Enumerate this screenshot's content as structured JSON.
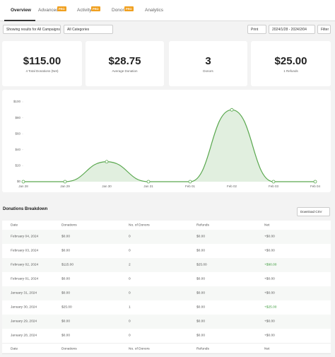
{
  "tabs": [
    {
      "label": "Overview"
    },
    {
      "label": "Advanced",
      "badge": "PRO"
    },
    {
      "label": "Activity",
      "badge": "PRO"
    },
    {
      "label": "Donors",
      "badge": "PRO"
    },
    {
      "label": "Analytics"
    }
  ],
  "filters": {
    "campaign": "Showing results for All Campaigns",
    "category": "All Categories",
    "print": "Print",
    "date_range": "2024/1/28 - 2024/2/04",
    "filter": "Filter"
  },
  "stats": [
    {
      "value": "$115.00",
      "label": "4 Total Donations (Net)"
    },
    {
      "value": "$28.75",
      "label": "Average Donation"
    },
    {
      "value": "3",
      "label": "Donors"
    },
    {
      "value": "$25.00",
      "label": "1 Refunds"
    }
  ],
  "chart_data": {
    "type": "area",
    "categories": [
      "Jan 28",
      "Jan 29",
      "Jan 30",
      "Jan 31",
      "Feb 01",
      "Feb 02",
      "Feb 03",
      "Feb 04"
    ],
    "values": [
      0,
      0,
      25,
      0,
      0,
      90,
      0,
      0
    ],
    "color": "#5aa84f",
    "ylim": [
      0,
      100
    ],
    "yticks": [
      {
        "value": 0,
        "label": "$0"
      },
      {
        "value": 20,
        "label": "$20"
      },
      {
        "value": 40,
        "label": "$40"
      },
      {
        "value": 60,
        "label": "$60"
      },
      {
        "value": 80,
        "label": "$80"
      },
      {
        "value": 100,
        "label": "$100"
      }
    ]
  },
  "breakdown": {
    "title": "Donations Breakdown",
    "download": "Download CSV",
    "columns": [
      "Date",
      "Donations",
      "No. of Donors",
      "Refunds",
      "Net"
    ],
    "rows": [
      {
        "cells": [
          "February 04, 2024",
          "$0.00",
          "0",
          "$0.00",
          "+$0.00"
        ],
        "net_color": "#555555"
      },
      {
        "cells": [
          "February 03, 2024",
          "$0.00",
          "0",
          "$0.00",
          "+$0.00"
        ],
        "net_color": "#555555"
      },
      {
        "cells": [
          "February 02, 2024",
          "$115.00",
          "2",
          "$25.00",
          "+$90.00"
        ],
        "net_color": "#3a9a3a"
      },
      {
        "cells": [
          "February 01, 2024",
          "$0.00",
          "0",
          "$0.00",
          "+$0.00"
        ],
        "net_color": "#555555"
      },
      {
        "cells": [
          "January 31, 2024",
          "$0.00",
          "0",
          "$0.00",
          "+$0.00"
        ],
        "net_color": "#555555"
      },
      {
        "cells": [
          "January 30, 2024",
          "$25.00",
          "1",
          "$0.00",
          "+$25.00"
        ],
        "net_color": "#3a9a3a"
      },
      {
        "cells": [
          "January 29, 2024",
          "$0.00",
          "0",
          "$0.00",
          "+$0.00"
        ],
        "net_color": "#555555"
      },
      {
        "cells": [
          "January 28, 2024",
          "$0.00",
          "0",
          "$0.00",
          "+$0.00"
        ],
        "net_color": "#555555"
      }
    ]
  }
}
